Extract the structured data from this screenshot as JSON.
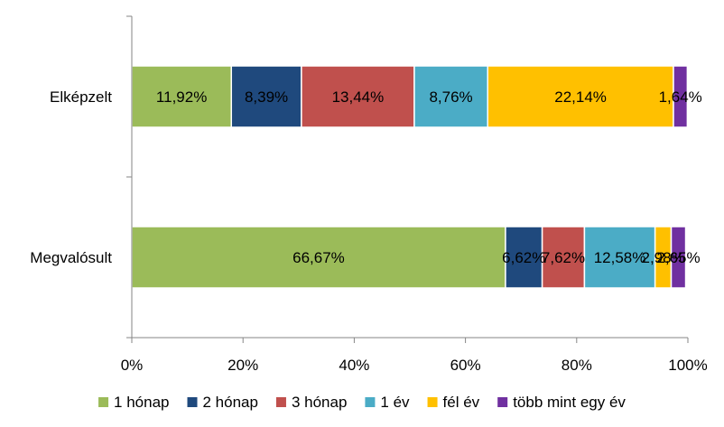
{
  "chart_data": {
    "type": "bar",
    "orientation": "horizontal",
    "stacked": "100%",
    "categories": [
      "Elképzelt",
      "Megvalósult"
    ],
    "series": [
      {
        "name": "1 hónap",
        "color": "#9BBB59",
        "values": [
          17.9,
          67.2
        ],
        "labels": [
          "11,92%",
          "66,67%"
        ]
      },
      {
        "name": "2 hónap",
        "color": "#1F497D",
        "values": [
          12.6,
          6.6
        ],
        "labels": [
          "8,39%",
          "6,62%"
        ]
      },
      {
        "name": "3 hónap",
        "color": "#C0504D",
        "values": [
          20.3,
          7.6
        ],
        "labels": [
          "13,44%",
          "7,62%"
        ]
      },
      {
        "name": "1 év",
        "color": "#4BACC6",
        "values": [
          13.2,
          12.7
        ],
        "labels": [
          "8,76%",
          "12,58%"
        ]
      },
      {
        "name": "fél év",
        "color": "#FFC000",
        "values": [
          33.4,
          2.9
        ],
        "labels": [
          "22,14%",
          "2,98%"
        ]
      },
      {
        "name": "több mint egy év",
        "color": "#7030A0",
        "values": [
          2.5,
          2.6
        ],
        "labels": [
          "1,64%",
          "2,65%"
        ]
      }
    ],
    "xlim": [
      0,
      100
    ],
    "x_ticks": [
      "0%",
      "20%",
      "40%",
      "60%",
      "80%",
      "100%"
    ],
    "grid": false,
    "legend_position": "bottom"
  }
}
